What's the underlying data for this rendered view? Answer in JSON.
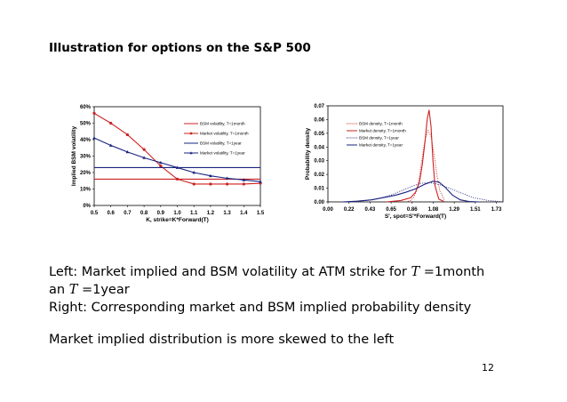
{
  "slide": {
    "title": "Illustration for options on the S&P 500",
    "page_number": "12",
    "text": {
      "line1_a": "Left: Market implied and BSM volatility at ATM strike for ",
      "line1_var": "T",
      "line1_b": " =1month",
      "line2_a": "an ",
      "line2_var": "T",
      "line2_b": " =1year",
      "line3": "Right: Corresponding market and BSM implied probability density",
      "line4": "Market implied distribution is more skewed to the left"
    }
  },
  "chart_data": [
    {
      "type": "line",
      "xlabel": "K, strike=K*Forward(T)",
      "ylabel": "Implied BSM volatility",
      "xlim": [
        0.5,
        1.5
      ],
      "ylim": [
        0,
        0.6
      ],
      "xticks": [
        "0.5",
        "0.6",
        "0.7",
        "0.8",
        "0.9",
        "1.0",
        "1.1",
        "1.2",
        "1.3",
        "1.4",
        "1.5"
      ],
      "yticks": [
        "0%",
        "10%",
        "20%",
        "30%",
        "40%",
        "50%",
        "60%"
      ],
      "legend_position": "right",
      "series": [
        {
          "name": "BSM volatility, T=1month",
          "color": "#cc2222",
          "marker": "none",
          "x": [
            0.5,
            1.5
          ],
          "y": [
            0.16,
            0.16
          ]
        },
        {
          "name": "Market volatility, T=1month",
          "color": "#cc2222",
          "marker": "circle",
          "x": [
            0.5,
            0.6,
            0.7,
            0.8,
            0.9,
            1.0,
            1.1,
            1.2,
            1.3,
            1.4,
            1.5
          ],
          "y": [
            0.56,
            0.5,
            0.43,
            0.34,
            0.24,
            0.16,
            0.13,
            0.13,
            0.13,
            0.13,
            0.135
          ]
        },
        {
          "name": "BSM volatility, T=1year",
          "color": "#1a237e",
          "marker": "none",
          "x": [
            0.5,
            1.5
          ],
          "y": [
            0.23,
            0.23
          ]
        },
        {
          "name": "Market volatility, T=1year",
          "color": "#1a237e",
          "marker": "triangle",
          "x": [
            0.5,
            0.6,
            0.7,
            0.8,
            0.9,
            1.0,
            1.1,
            1.2,
            1.3,
            1.4,
            1.5
          ],
          "y": [
            0.41,
            0.365,
            0.325,
            0.29,
            0.26,
            0.23,
            0.2,
            0.18,
            0.165,
            0.155,
            0.145
          ]
        }
      ]
    },
    {
      "type": "line",
      "xlabel": "S', spot=S'*Forward(T)",
      "ylabel": "Probability density",
      "xlim": [
        0.0,
        1.8
      ],
      "ylim": [
        0,
        0.07
      ],
      "xticks": [
        "0.00",
        "0.22",
        "0.43",
        "0.65",
        "0.86",
        "1.08",
        "1.29",
        "1.51",
        "1.73"
      ],
      "yticks": [
        "0.00",
        "0.01",
        "0.02",
        "0.03",
        "0.04",
        "0.05",
        "0.06",
        "0.07"
      ],
      "legend_position": "top-left",
      "series": [
        {
          "name": "BSM density, T=1month",
          "color": "#cc2222",
          "style": "dotted",
          "x": [
            0.8,
            0.85,
            0.88,
            0.91,
            0.94,
            0.97,
            1.0,
            1.03,
            1.06,
            1.09,
            1.12,
            1.15,
            1.2
          ],
          "y": [
            0.0,
            0.001,
            0.003,
            0.008,
            0.018,
            0.033,
            0.046,
            0.052,
            0.048,
            0.035,
            0.02,
            0.008,
            0.001
          ]
        },
        {
          "name": "Market density, T=1month",
          "color": "#cc2222",
          "style": "solid",
          "x": [
            0.6,
            0.75,
            0.85,
            0.9,
            0.94,
            0.97,
            1.0,
            1.02,
            1.04,
            1.06,
            1.08,
            1.1,
            1.14,
            1.2
          ],
          "y": [
            0.0,
            0.001,
            0.003,
            0.007,
            0.014,
            0.027,
            0.045,
            0.06,
            0.067,
            0.055,
            0.03,
            0.012,
            0.002,
            0.0
          ]
        },
        {
          "name": "BSM density, T=1year",
          "color": "#1a237e",
          "style": "dotted",
          "x": [
            0.2,
            0.4,
            0.55,
            0.65,
            0.75,
            0.85,
            0.95,
            1.05,
            1.15,
            1.25,
            1.35,
            1.5,
            1.65,
            1.8
          ],
          "y": [
            0.0,
            0.001,
            0.003,
            0.005,
            0.008,
            0.011,
            0.0135,
            0.014,
            0.0125,
            0.01,
            0.007,
            0.003,
            0.001,
            0.0
          ]
        },
        {
          "name": "Market density, T=1year",
          "color": "#1a237e",
          "style": "solid",
          "x": [
            0.15,
            0.3,
            0.45,
            0.6,
            0.7,
            0.8,
            0.9,
            1.0,
            1.08,
            1.14,
            1.2,
            1.28,
            1.36,
            1.45,
            1.55
          ],
          "y": [
            0.0,
            0.0005,
            0.0015,
            0.0035,
            0.005,
            0.007,
            0.0095,
            0.013,
            0.015,
            0.0145,
            0.011,
            0.005,
            0.0015,
            0.0003,
            0.0
          ]
        }
      ]
    }
  ]
}
